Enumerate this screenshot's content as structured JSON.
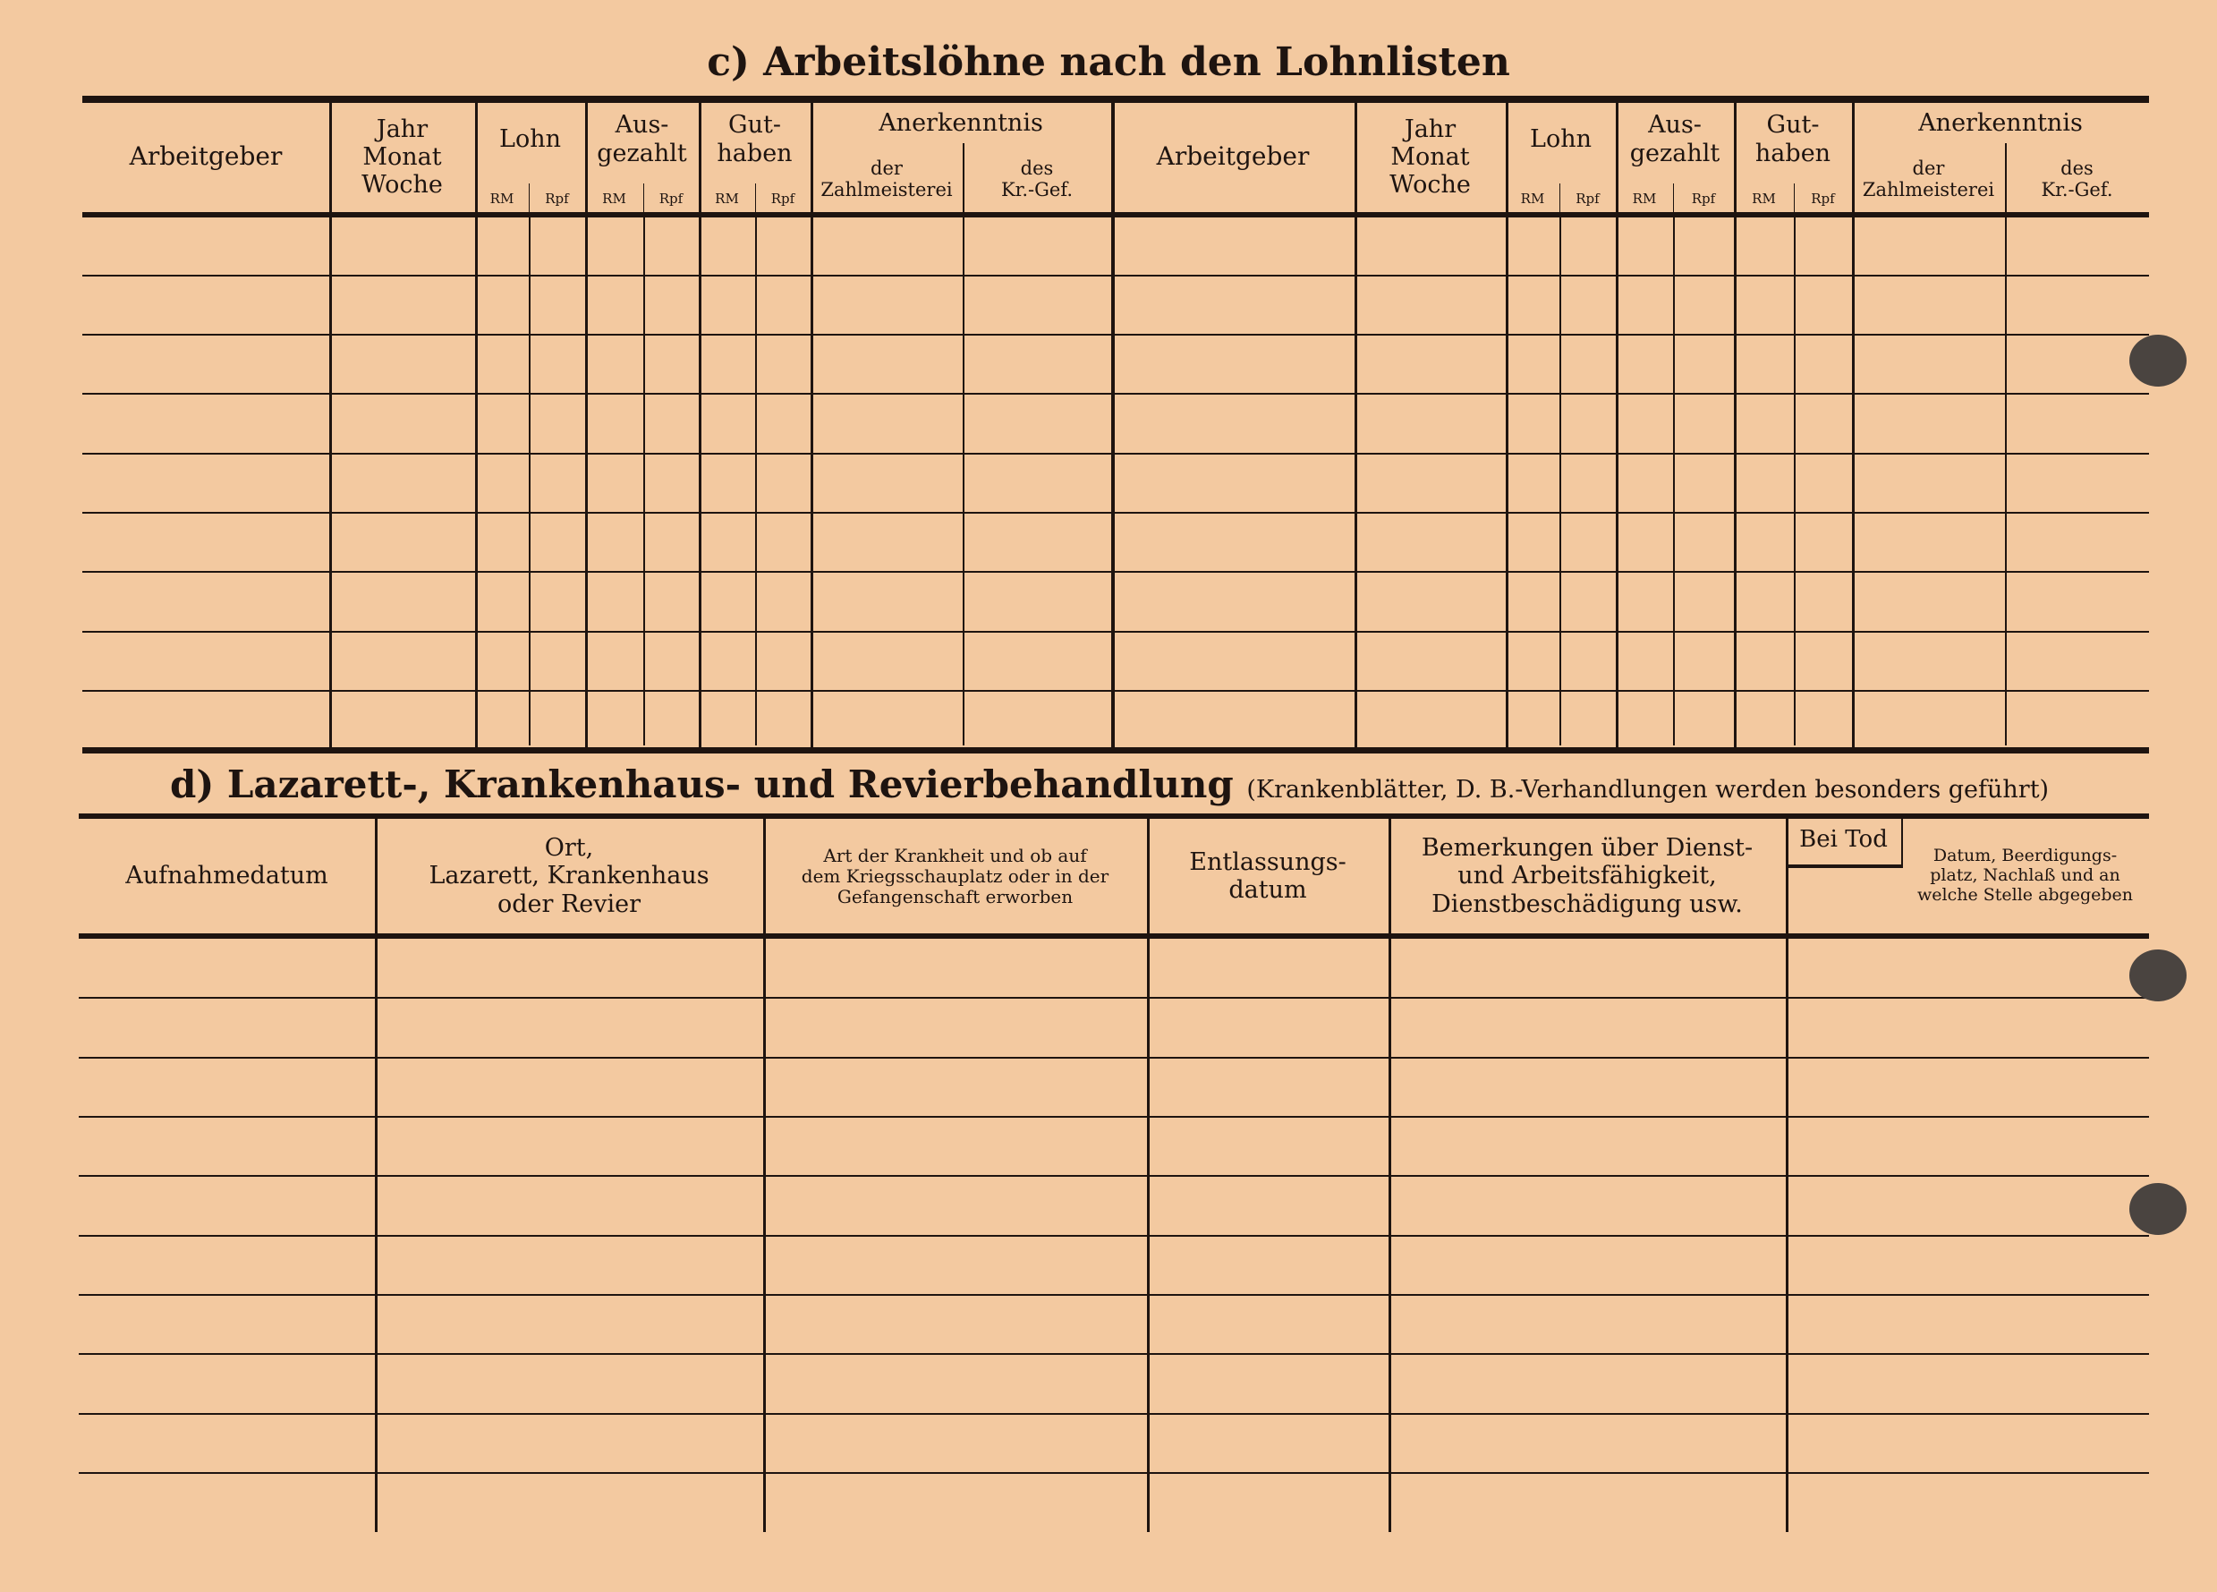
{
  "section_c": {
    "title": "c) Arbeitslöhne nach den Lohnlisten",
    "headers": {
      "arbeitgeber": "Arbeitgeber",
      "jahr": "Jahr",
      "monat": "Monat",
      "woche": "Woche",
      "lohn": "Lohn",
      "aus": "Aus-",
      "gezahlt": "gezahlt",
      "gut": "Gut-",
      "haben": "haben",
      "rm": "RM",
      "rpf": "Rpf",
      "anerkenntnis": "Anerkenntnis",
      "der": "der",
      "zahlmeisterei": "Zahlmeisterei",
      "des": "des",
      "krgef": "Kr.-Gef."
    }
  },
  "section_d": {
    "title": "d) Lazarett-, Krankenhaus- und Revierbehandlung",
    "note": "(Krankenblätter, D. B.-Verhandlungen werden besonders geführt)",
    "headers": {
      "aufnahmedatum": "Aufnahmedatum",
      "ort_1": "Ort,",
      "ort_2": "Lazarett, Krankenhaus",
      "ort_3": "oder Revier",
      "art_1": "Art der Krankheit und ob auf",
      "art_2": "dem Kriegsschauplatz oder in der",
      "art_3": "Gefangenschaft erworben",
      "entl_1": "Entlassungs-",
      "entl_2": "datum",
      "bem_1": "Bemerkungen über Dienst-",
      "bem_2": "und Arbeitsfähigkeit,",
      "bem_3": "Dienstbeschädigung usw.",
      "bei_tod": "Bei Tod",
      "datum_1": "Datum, Beerdigungs-",
      "datum_2": "platz, Nachlaß und an",
      "datum_3": "welche Stelle abgegeben"
    }
  }
}
